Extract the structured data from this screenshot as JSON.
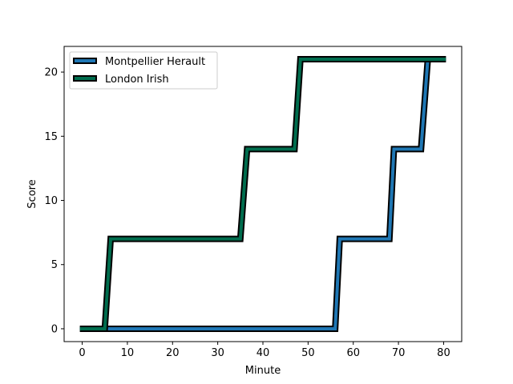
{
  "chart_data": {
    "type": "line",
    "step": true,
    "xlabel": "Minute",
    "ylabel": "Score",
    "xlim": [
      -4,
      84
    ],
    "ylim": [
      -1,
      22
    ],
    "xticks": [
      0,
      10,
      20,
      30,
      40,
      50,
      60,
      70,
      80
    ],
    "yticks": [
      0,
      5,
      10,
      15,
      20
    ],
    "grid": false,
    "legend_position": "top-left",
    "series": [
      {
        "name": "Montpellier Herault",
        "color": "#1f77b4",
        "edge_color": "#000000",
        "x": [
          -0.5,
          56,
          57,
          68,
          69,
          75,
          76.5,
          80.5
        ],
        "y": [
          0,
          0,
          7,
          7,
          14,
          14,
          21,
          21
        ]
      },
      {
        "name": "London Irish",
        "color": "#006d4e",
        "edge_color": "#000000",
        "x": [
          -0.5,
          5,
          6.3,
          35,
          36.5,
          47,
          48.3,
          80.5
        ],
        "y": [
          0,
          0,
          7,
          7,
          14,
          14,
          21,
          21
        ]
      }
    ]
  }
}
